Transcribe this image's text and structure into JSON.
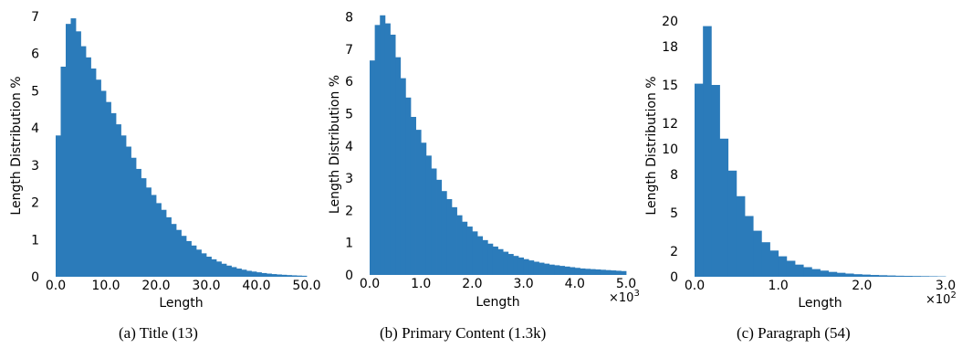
{
  "chart_data": [
    {
      "type": "bar",
      "caption": "(a) Title (13)",
      "xlabel": "Length",
      "ylabel": "Length Distribution %",
      "xlim": [
        0,
        50
      ],
      "ylim": [
        0,
        7.05
      ],
      "x_ticks": [
        0,
        10,
        20,
        30,
        40,
        50
      ],
      "x_tick_labels": [
        "0.0",
        "10.0",
        "20.0",
        "30.0",
        "40.0",
        "50.0"
      ],
      "y_ticks": [
        0,
        1,
        2,
        3,
        4,
        5,
        6,
        7
      ],
      "y_tick_labels": [
        "0",
        "1",
        "2",
        "3",
        "4",
        "5",
        "6",
        "7"
      ],
      "x_multiplier": "",
      "bin_width": 1,
      "bin_starts": [
        0,
        1,
        2,
        3,
        4,
        5,
        6,
        7,
        8,
        9,
        10,
        11,
        12,
        13,
        14,
        15,
        16,
        17,
        18,
        19,
        20,
        21,
        22,
        23,
        24,
        25,
        26,
        27,
        28,
        29,
        30,
        31,
        32,
        33,
        34,
        35,
        36,
        37,
        38,
        39,
        40,
        41,
        42,
        43,
        44,
        45,
        46,
        47,
        48,
        49
      ],
      "values": [
        3.8,
        5.65,
        6.8,
        6.95,
        6.6,
        6.2,
        5.9,
        5.6,
        5.3,
        5.0,
        4.7,
        4.4,
        4.1,
        3.8,
        3.5,
        3.2,
        2.9,
        2.65,
        2.4,
        2.2,
        1.98,
        1.8,
        1.6,
        1.42,
        1.26,
        1.1,
        0.96,
        0.84,
        0.73,
        0.63,
        0.54,
        0.47,
        0.41,
        0.35,
        0.3,
        0.26,
        0.22,
        0.19,
        0.16,
        0.14,
        0.12,
        0.1,
        0.085,
        0.072,
        0.062,
        0.053,
        0.045,
        0.038,
        0.032,
        0.027
      ]
    },
    {
      "type": "bar",
      "caption": "(b) Primary Content (1.3k)",
      "xlabel": "Length",
      "ylabel": "Length Distribution %",
      "xlim": [
        0,
        5
      ],
      "ylim": [
        0,
        8.1
      ],
      "x_ticks": [
        0,
        1,
        2,
        3,
        4,
        5
      ],
      "x_tick_labels": [
        "0.0",
        "1.0",
        "2.0",
        "3.0",
        "4.0",
        "5.0"
      ],
      "y_ticks": [
        0,
        1,
        2,
        3,
        4,
        5,
        6,
        7,
        8
      ],
      "y_tick_labels": [
        "0",
        "1",
        "2",
        "3",
        "4",
        "5",
        "6",
        "7",
        "8"
      ],
      "x_multiplier": "×10",
      "x_multiplier_exp": "3",
      "bin_width": 0.1,
      "bin_starts": [
        0,
        0.1,
        0.2,
        0.3,
        0.4,
        0.5,
        0.6,
        0.7,
        0.8,
        0.9,
        1.0,
        1.1,
        1.2,
        1.3,
        1.4,
        1.5,
        1.6,
        1.7,
        1.8,
        1.9,
        2.0,
        2.1,
        2.2,
        2.3,
        2.4,
        2.5,
        2.6,
        2.7,
        2.8,
        2.9,
        3.0,
        3.1,
        3.2,
        3.3,
        3.4,
        3.5,
        3.6,
        3.7,
        3.8,
        3.9,
        4.0,
        4.1,
        4.2,
        4.3,
        4.4,
        4.5,
        4.6,
        4.7,
        4.8,
        4.9
      ],
      "values": [
        6.65,
        7.75,
        8.05,
        7.8,
        7.45,
        6.75,
        6.1,
        5.5,
        4.9,
        4.5,
        4.1,
        3.7,
        3.3,
        2.95,
        2.6,
        2.35,
        2.1,
        1.85,
        1.65,
        1.5,
        1.35,
        1.2,
        1.08,
        0.97,
        0.88,
        0.8,
        0.72,
        0.65,
        0.59,
        0.54,
        0.49,
        0.45,
        0.41,
        0.38,
        0.35,
        0.32,
        0.3,
        0.28,
        0.26,
        0.24,
        0.22,
        0.2,
        0.19,
        0.18,
        0.17,
        0.16,
        0.15,
        0.14,
        0.13,
        0.12
      ]
    },
    {
      "type": "bar",
      "caption": "(c) Paragraph (54)",
      "xlabel": "Length",
      "ylabel": "Length Distribution %",
      "xlim": [
        0,
        3
      ],
      "ylim": [
        0,
        20.5
      ],
      "x_ticks": [
        0,
        1,
        2,
        3
      ],
      "x_tick_labels": [
        "0.0",
        "1.0",
        "2.0",
        "3.0"
      ],
      "y_ticks": [
        0,
        2,
        5,
        8,
        10,
        12,
        15,
        18,
        20
      ],
      "y_tick_labels": [
        "0",
        "2",
        "5",
        "8",
        "10",
        "12",
        "15",
        "18",
        "20"
      ],
      "x_multiplier": "×10",
      "x_multiplier_exp": "2",
      "bin_width": 0.1,
      "bin_starts": [
        0,
        0.1,
        0.2,
        0.3,
        0.4,
        0.5,
        0.6,
        0.7,
        0.8,
        0.9,
        1.0,
        1.1,
        1.2,
        1.3,
        1.4,
        1.5,
        1.6,
        1.7,
        1.8,
        1.9,
        2.0,
        2.1,
        2.2,
        2.3,
        2.4,
        2.5,
        2.6,
        2.7,
        2.8,
        2.9
      ],
      "values": [
        15.1,
        19.6,
        15.0,
        10.8,
        8.3,
        6.3,
        4.75,
        3.6,
        2.7,
        2.05,
        1.6,
        1.25,
        0.95,
        0.75,
        0.6,
        0.48,
        0.38,
        0.31,
        0.25,
        0.2,
        0.17,
        0.14,
        0.12,
        0.1,
        0.08,
        0.07,
        0.06,
        0.05,
        0.04,
        0.03
      ]
    }
  ],
  "colors": {
    "bar": "#2b7bba"
  }
}
